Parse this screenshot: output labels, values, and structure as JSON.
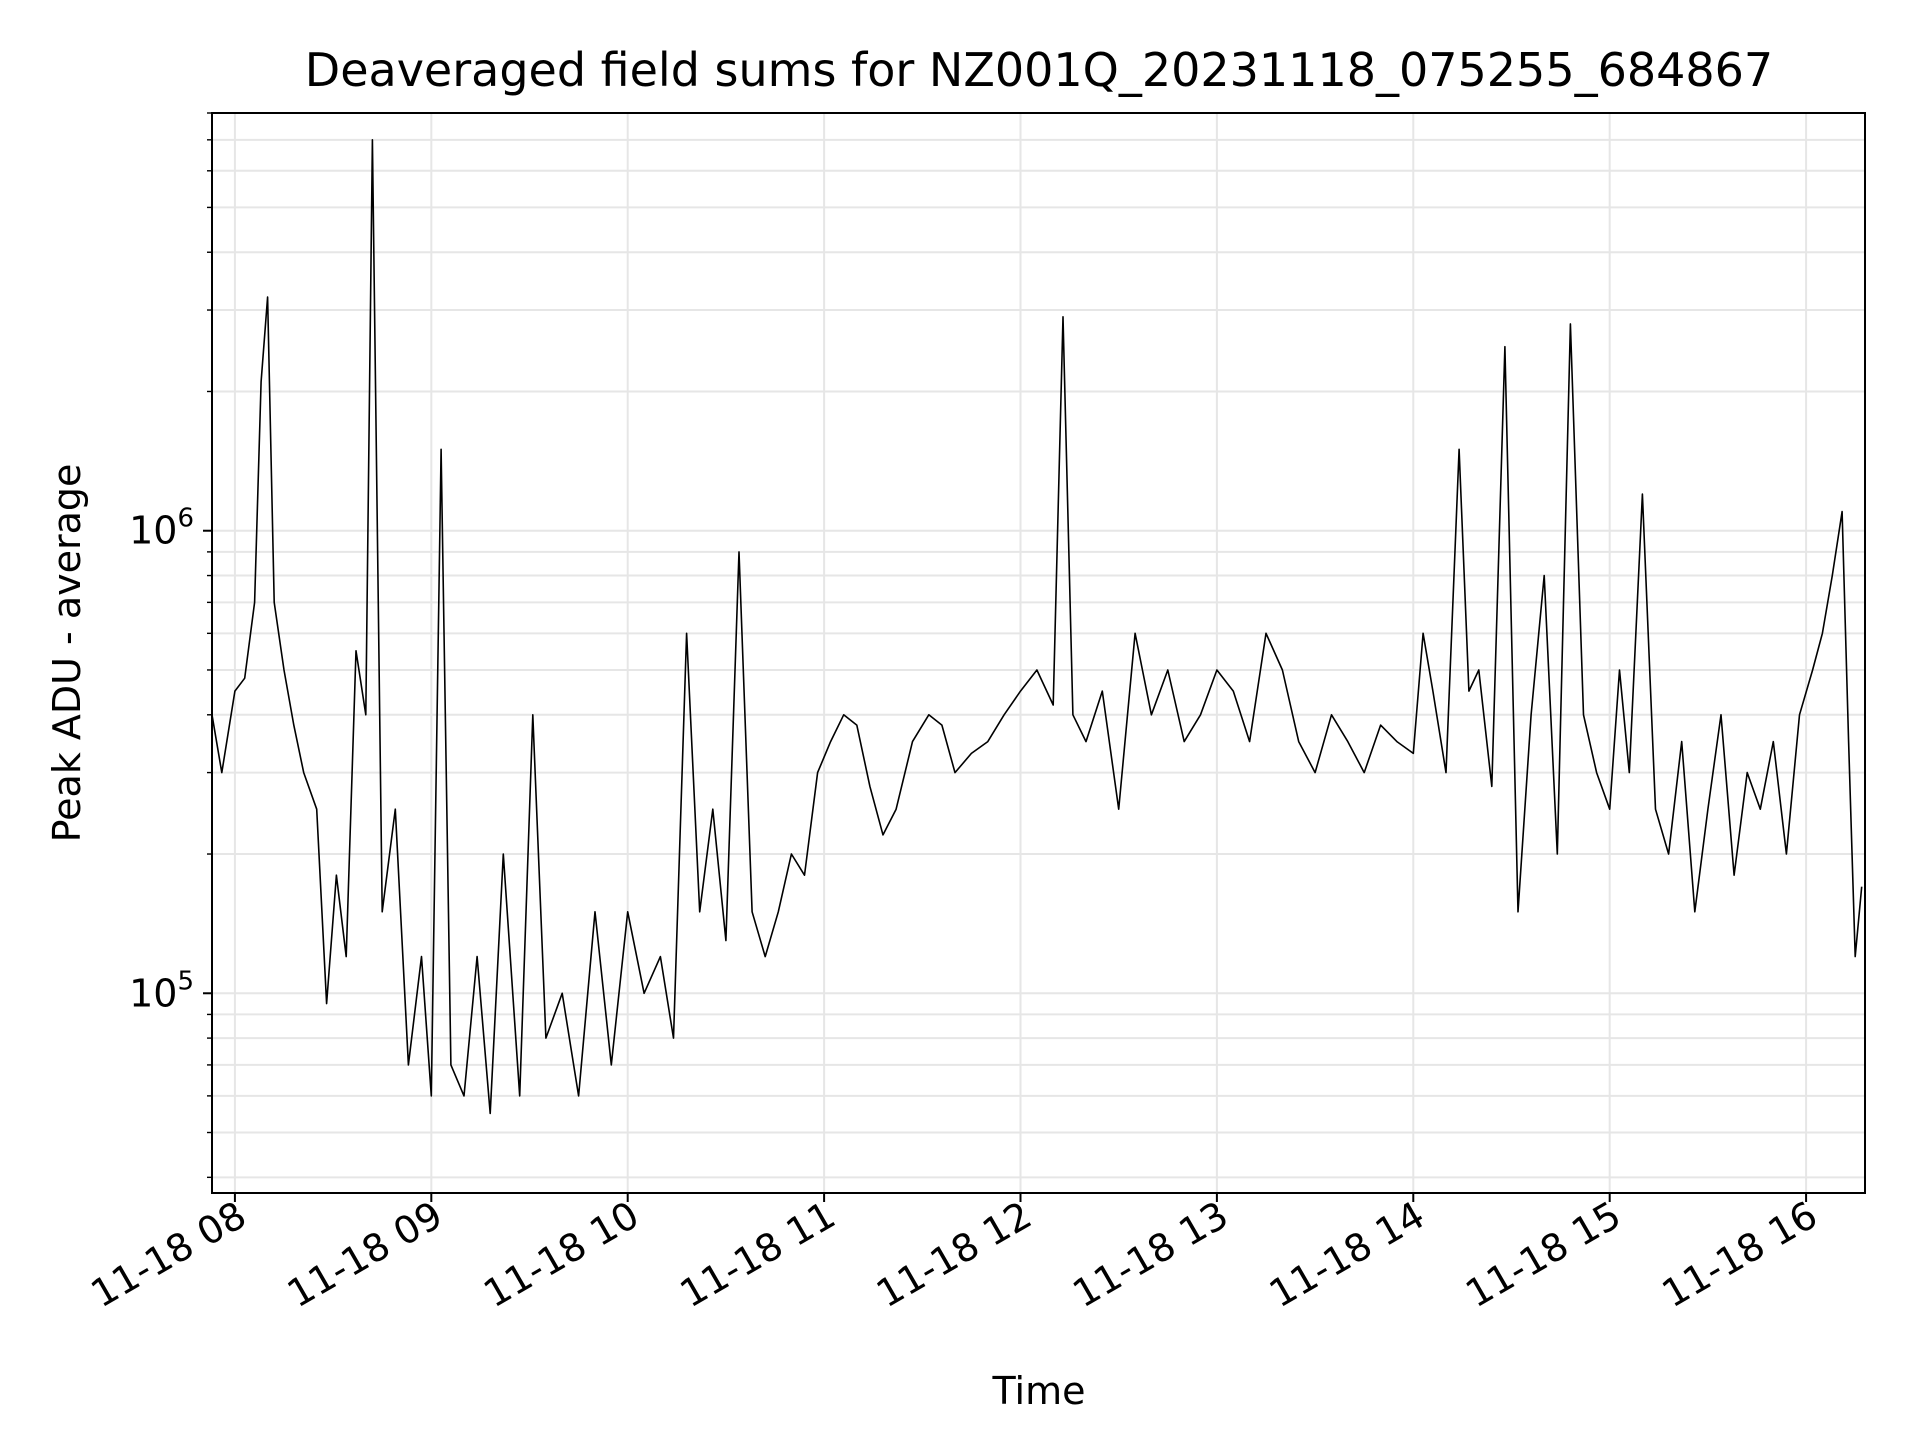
{
  "chart_data": {
    "type": "line",
    "title": "Deaveraged field sums for NZ001Q_20231118_075255_684867",
    "xlabel": "Time",
    "ylabel": "Peak ADU - average",
    "y_scale": "log",
    "ylim": [
      37000,
      8000000
    ],
    "xlim": [
      "2023-11-18 07:53",
      "2023-11-18 16:18"
    ],
    "grid": true,
    "legend": "none",
    "line_color": "#000000",
    "grid_color": "#e6e6e6",
    "x_ticks": [
      {
        "value": "2023-11-18 08:00",
        "label": "11-18 08"
      },
      {
        "value": "2023-11-18 09:00",
        "label": "11-18 09"
      },
      {
        "value": "2023-11-18 10:00",
        "label": "11-18 10"
      },
      {
        "value": "2023-11-18 11:00",
        "label": "11-18 11"
      },
      {
        "value": "2023-11-18 12:00",
        "label": "11-18 12"
      },
      {
        "value": "2023-11-18 13:00",
        "label": "11-18 13"
      },
      {
        "value": "2023-11-18 14:00",
        "label": "11-18 14"
      },
      {
        "value": "2023-11-18 15:00",
        "label": "11-18 15"
      },
      {
        "value": "2023-11-18 16:00",
        "label": "11-18 16"
      }
    ],
    "y_ticks": [
      {
        "value": 100000,
        "base": "10",
        "exp": "5"
      },
      {
        "value": 1000000,
        "base": "10",
        "exp": "6"
      }
    ],
    "series": [
      {
        "x": [
          "07:53",
          "07:56",
          "08:00",
          "08:03",
          "08:06",
          "08:08",
          "08:10",
          "08:12",
          "08:15",
          "08:18",
          "08:21",
          "08:25",
          "08:28",
          "08:31",
          "08:34",
          "08:37",
          "08:40",
          "08:42",
          "08:45",
          "08:49",
          "08:53",
          "08:57",
          "09:00",
          "09:03",
          "09:06",
          "09:10",
          "09:14",
          "09:18",
          "09:22",
          "09:27",
          "09:31",
          "09:35",
          "09:40",
          "09:45",
          "09:50",
          "09:55",
          "10:00",
          "10:05",
          "10:10",
          "10:14",
          "10:18",
          "10:22",
          "10:26",
          "10:30",
          "10:34",
          "10:38",
          "10:42",
          "10:46",
          "10:50",
          "10:54",
          "10:58",
          "11:02",
          "11:06",
          "11:10",
          "11:14",
          "11:18",
          "11:22",
          "11:27",
          "11:32",
          "11:36",
          "11:40",
          "11:45",
          "11:50",
          "11:55",
          "12:00",
          "12:05",
          "12:10",
          "12:13",
          "12:16",
          "12:20",
          "12:25",
          "12:30",
          "12:35",
          "12:40",
          "12:45",
          "12:50",
          "12:55",
          "13:00",
          "13:05",
          "13:10",
          "13:15",
          "13:20",
          "13:25",
          "13:30",
          "13:35",
          "13:40",
          "13:45",
          "13:50",
          "13:55",
          "14:00",
          "14:03",
          "14:06",
          "14:10",
          "14:14",
          "14:17",
          "14:20",
          "14:24",
          "14:28",
          "14:32",
          "14:36",
          "14:40",
          "14:44",
          "14:48",
          "14:52",
          "14:56",
          "15:00",
          "15:03",
          "15:06",
          "15:10",
          "15:14",
          "15:18",
          "15:22",
          "15:26",
          "15:30",
          "15:34",
          "15:38",
          "15:42",
          "15:46",
          "15:50",
          "15:54",
          "15:58",
          "16:02",
          "16:05",
          "16:08",
          "16:11",
          "16:13",
          "16:15",
          "16:17"
        ],
        "y": [
          400000,
          300000,
          450000,
          480000,
          700000,
          2100000,
          3200000,
          700000,
          500000,
          380000,
          300000,
          250000,
          95000,
          180000,
          120000,
          550000,
          400000,
          7000000,
          150000,
          250000,
          70000,
          120000,
          60000,
          1500000,
          70000,
          60000,
          120000,
          55000,
          200000,
          60000,
          400000,
          80000,
          100000,
          60000,
          150000,
          70000,
          150000,
          100000,
          120000,
          80000,
          600000,
          150000,
          250000,
          130000,
          900000,
          150000,
          120000,
          150000,
          200000,
          180000,
          300000,
          350000,
          400000,
          380000,
          280000,
          220000,
          250000,
          350000,
          400000,
          380000,
          300000,
          330000,
          350000,
          400000,
          450000,
          500000,
          420000,
          2900000,
          400000,
          350000,
          450000,
          250000,
          600000,
          400000,
          500000,
          350000,
          400000,
          500000,
          450000,
          350000,
          600000,
          500000,
          350000,
          300000,
          400000,
          350000,
          300000,
          380000,
          350000,
          330000,
          600000,
          450000,
          300000,
          1500000,
          450000,
          500000,
          280000,
          2500000,
          150000,
          400000,
          800000,
          200000,
          2800000,
          400000,
          300000,
          250000,
          500000,
          300000,
          1200000,
          250000,
          200000,
          350000,
          150000,
          250000,
          400000,
          180000,
          300000,
          250000,
          350000,
          200000,
          400000,
          500000,
          600000,
          800000,
          1100000,
          350000,
          120000,
          170000
        ]
      }
    ]
  }
}
